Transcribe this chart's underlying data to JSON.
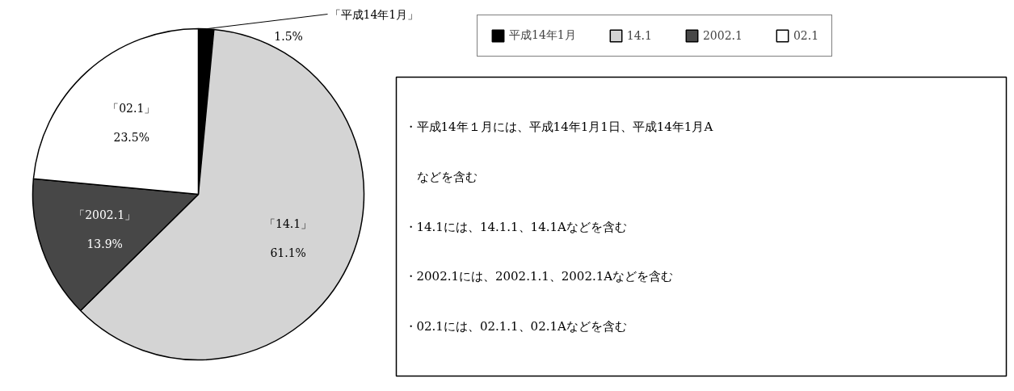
{
  "chart_data": {
    "type": "pie",
    "categories": [
      "平成14年1月",
      "14.1",
      "2002.1",
      "02.1"
    ],
    "values": [
      1.5,
      61.1,
      13.9,
      23.5
    ],
    "colors": [
      "#000000",
      "#d4d4d4",
      "#474747",
      "#ffffff"
    ],
    "value_labels": [
      "1.5%",
      "61.1%",
      "13.9%",
      "23.5%"
    ],
    "legend": "top right",
    "annotations": [
      "「平成14年1月」",
      "「14.1」",
      "「2002.1」",
      "「02.1」",
      "・平成14年１月には、平成14年1月1日、平成14年1月A",
      "　などを含む",
      "・14.1には、14.1.1、14.1Aなどを含む",
      "・2002.1には、2002.1.1、2002.1Aなどを含む",
      "・02.1には、02.1.1、02.1Aなどを含む"
    ]
  }
}
